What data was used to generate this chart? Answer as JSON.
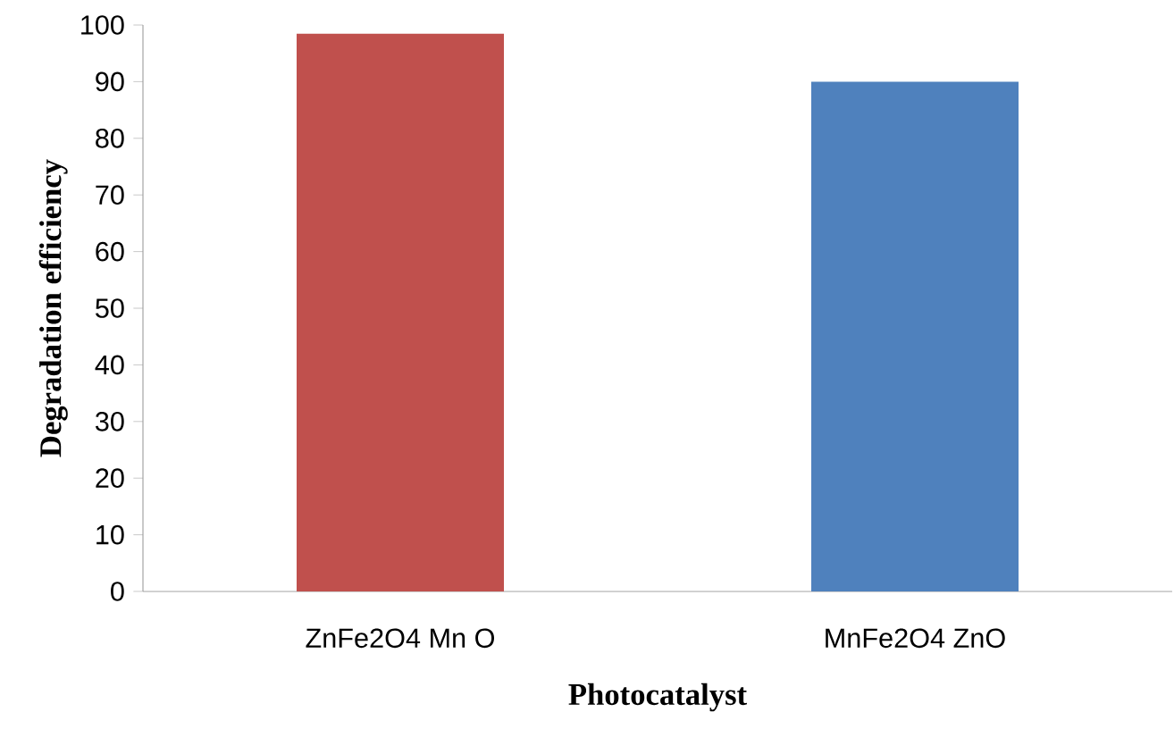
{
  "chart_data": {
    "type": "bar",
    "xlabel": "Photocatalyst",
    "ylabel": "Degradation efficiency",
    "categories": [
      "ZnFe2O4 Mn O",
      "MnFe2O4 ZnO"
    ],
    "values": [
      98.5,
      90
    ],
    "colors": [
      "#c0504d",
      "#4f81bd"
    ],
    "ylim": [
      0,
      100
    ],
    "yticks": [
      0,
      10,
      20,
      30,
      40,
      50,
      60,
      70,
      80,
      90,
      100
    ],
    "grid": false
  }
}
